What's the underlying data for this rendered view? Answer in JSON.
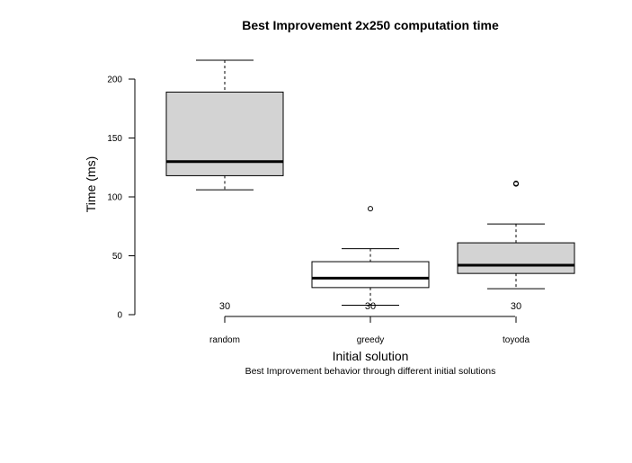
{
  "chart_data": {
    "type": "boxplot",
    "title": "Best Improvement 2x250 computation time",
    "xlabel": "Initial solution",
    "ylabel": "Time (ms)",
    "subtitle": "Best Improvement behavior through different initial solutions",
    "ylim": [
      0,
      200
    ],
    "yticks": [
      0,
      50,
      100,
      150,
      200
    ],
    "grid": false,
    "legend": "none",
    "categories": [
      "random",
      "greedy",
      "toyoda"
    ],
    "counts": [
      30,
      30,
      30
    ],
    "boxes": [
      {
        "category": "random",
        "whisker_low": 106,
        "q1": 118,
        "median": 130,
        "q3": 189,
        "whisker_high": 216,
        "outliers": [],
        "fill": "#d3d3d3"
      },
      {
        "category": "greedy",
        "whisker_low": 8,
        "q1": 23,
        "median": 31,
        "q3": 45,
        "whisker_high": 56,
        "outliers": [
          90
        ],
        "fill": "#ffffff"
      },
      {
        "category": "toyoda",
        "whisker_low": 22,
        "q1": 35,
        "median": 42,
        "q3": 61,
        "whisker_high": 77,
        "outliers": [
          111,
          111.5
        ],
        "fill": "#d3d3d3"
      }
    ]
  }
}
